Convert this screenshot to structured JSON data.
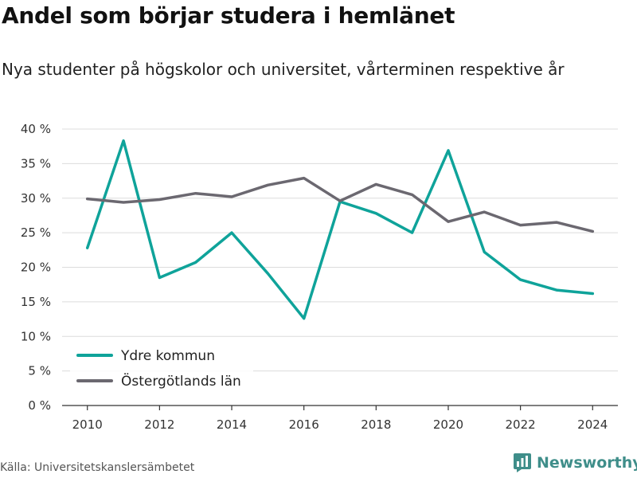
{
  "header": {
    "title": "Andel som börjar studera i hemlänet",
    "subtitle": "Nya studenter på högskolor och universitet, vårterminen respektive år"
  },
  "footer": {
    "source": "Källa: Universitetskanslersämbetet",
    "brand": "Newsworthy",
    "brand_icon": "newsworthy-logo-icon",
    "brand_color": "#3f8e8a"
  },
  "chart_data": {
    "type": "line",
    "title": "Andel som börjar studera i hemlänet",
    "subtitle": "Nya studenter på högskolor och universitet, vårterminen respektive år",
    "xlabel": "",
    "ylabel": "",
    "x": [
      2010,
      2011,
      2012,
      2013,
      2014,
      2015,
      2016,
      2017,
      2018,
      2019,
      2020,
      2021,
      2022,
      2023,
      2024
    ],
    "xlim": [
      2009.3,
      2024.7
    ],
    "x_ticks": [
      2010,
      2012,
      2014,
      2016,
      2018,
      2020,
      2022,
      2024
    ],
    "x_tick_labels": [
      "2010",
      "2012",
      "2014",
      "2016",
      "2018",
      "2020",
      "2022",
      "2024"
    ],
    "ylim": [
      0,
      40
    ],
    "y_ticks": [
      0,
      5,
      10,
      15,
      20,
      25,
      30,
      35,
      40
    ],
    "y_tick_labels": [
      "0 %",
      "5 %",
      "10 %",
      "15 %",
      "20 %",
      "25 %",
      "30 %",
      "35 %",
      "40 %"
    ],
    "grid": true,
    "legend_position": "bottom-left",
    "series": [
      {
        "name": "Ydre kommun",
        "color": "#0fa39a",
        "values": [
          22.8,
          38.3,
          18.5,
          20.7,
          25.0,
          19.1,
          12.6,
          29.5,
          27.8,
          25.0,
          36.9,
          22.2,
          18.2,
          16.7,
          16.2
        ]
      },
      {
        "name": "Östergötlands län",
        "color": "#6b6870",
        "values": [
          29.9,
          29.4,
          29.8,
          30.7,
          30.2,
          31.9,
          32.9,
          29.6,
          32.0,
          30.5,
          26.6,
          28.0,
          26.1,
          26.5,
          25.2
        ]
      }
    ]
  }
}
